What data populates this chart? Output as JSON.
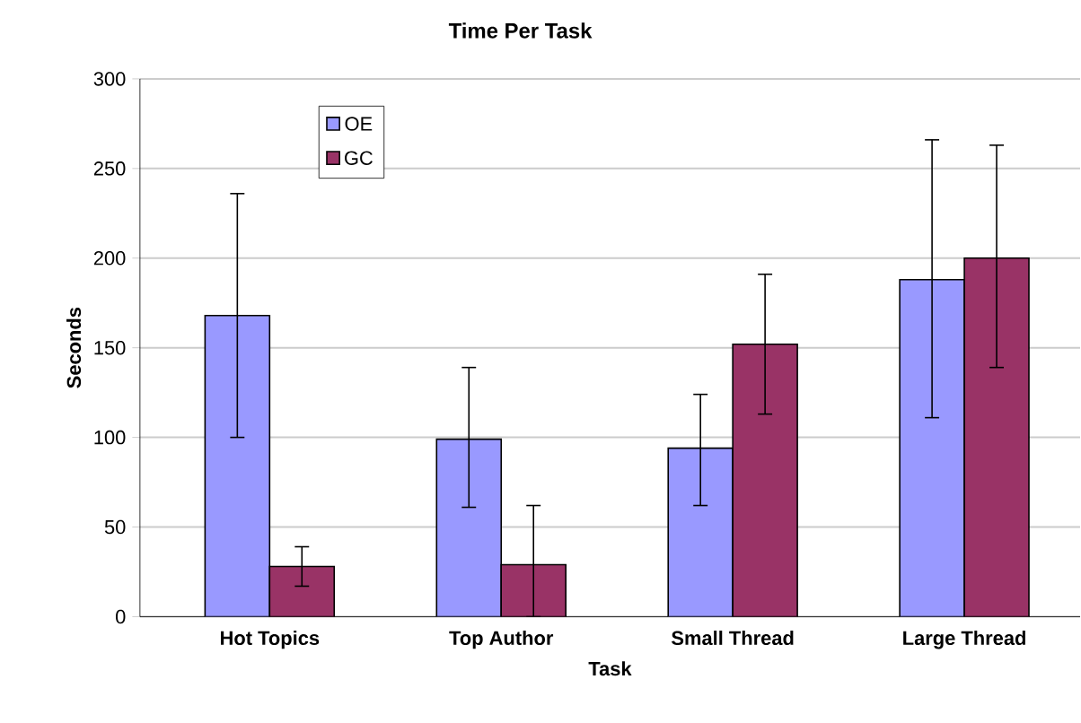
{
  "chart_data": {
    "type": "bar",
    "title": "Time Per Task",
    "xlabel": "Task",
    "ylabel": "Seconds",
    "categories": [
      "Hot Topics",
      "Top Author",
      "Small Thread",
      "Large Thread"
    ],
    "series": [
      {
        "name": "OE",
        "color": "#9999ff",
        "values": [
          168,
          99,
          94,
          188
        ],
        "errors": [
          [
            100,
            236
          ],
          [
            61,
            139
          ],
          [
            62,
            124
          ],
          [
            111,
            266
          ]
        ]
      },
      {
        "name": "GC",
        "color": "#993366",
        "values": [
          28,
          29,
          152,
          200
        ],
        "errors": [
          [
            17,
            39
          ],
          [
            0,
            62
          ],
          [
            113,
            191
          ],
          [
            139,
            263
          ]
        ]
      }
    ],
    "ylim": [
      0,
      300
    ],
    "yticks": [
      0,
      50,
      100,
      150,
      200,
      250,
      300
    ],
    "grid": "y",
    "legend": "top left"
  }
}
